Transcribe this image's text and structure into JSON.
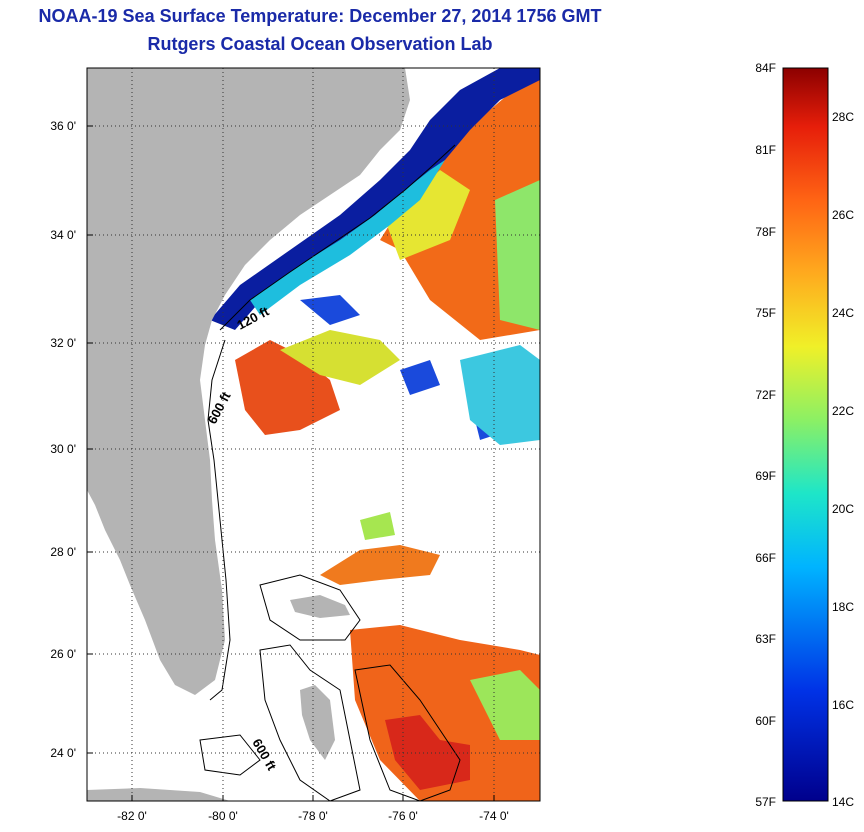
{
  "title": {
    "line1": "NOAA-19 Sea Surface Temperature:  December 27, 2014 1756 GMT",
    "line2": "Rutgers Coastal Ocean Observation Lab"
  },
  "map": {
    "lat_labels": [
      "36 0'",
      "34 0'",
      "32 0'",
      "30 0'",
      "28 0'",
      "26 0'",
      "24 0'"
    ],
    "lon_labels": [
      "-82 0'",
      "-80 0'",
      "-78 0'",
      "-76 0'",
      "-74 0'"
    ],
    "contour_labels": [
      "120 ft",
      "600 ft",
      "600 ft"
    ],
    "colors": {
      "land": "#b4b4b4",
      "cloud": "#ffffff",
      "cold": "#0a1ea0",
      "warm": "#f26a18"
    }
  },
  "colorbar": {
    "fahrenheit_labels": [
      "84F",
      "81F",
      "78F",
      "75F",
      "72F",
      "69F",
      "66F",
      "63F",
      "60F",
      "57F"
    ],
    "celsius_labels": [
      "28C",
      "26C",
      "24C",
      "22C",
      "20C",
      "18C",
      "16C",
      "14C"
    ]
  }
}
